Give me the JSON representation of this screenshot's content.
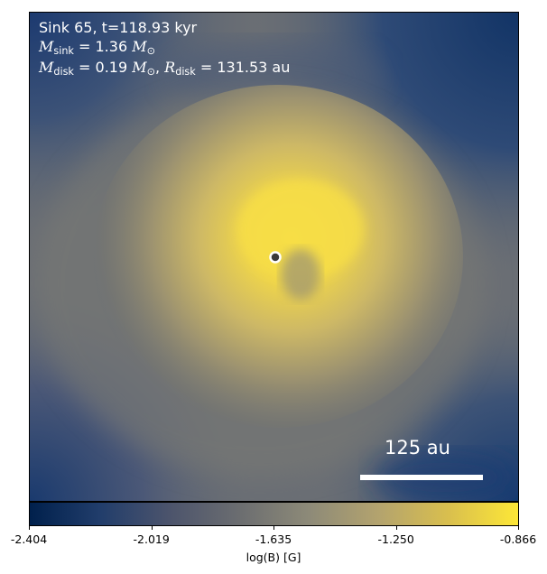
{
  "chart_data": {
    "type": "heatmap",
    "title_line1": "Sink 65, t=118.93 kyr",
    "title_line2": {
      "symbol": "M",
      "subscript": "sink",
      "value": "= 1.36",
      "unit": "M",
      "unit_subscript": "⊙"
    },
    "title_line3": {
      "mass_symbol": "M",
      "mass_subscript": "disk",
      "mass_value": "= 0.19",
      "mass_unit": "M",
      "mass_unit_subscript": "⊙",
      "radius_symbol": "R",
      "radius_subscript": "disk",
      "radius_value": "= 131.53",
      "radius_unit": "au"
    },
    "scale_bar_label": "125 au",
    "colorbar": {
      "label": "log(B) [G]",
      "ticks": [
        "-2.404",
        "-2.019",
        "-1.635",
        "-1.250",
        "-0.866"
      ],
      "range": [
        -2.404,
        -0.866
      ],
      "colormap": "cividis",
      "colors": [
        "#00204c",
        "#213d6b",
        "#4c546c",
        "#6b6d70",
        "#8d8a78",
        "#b3a36e",
        "#d9bf4e",
        "#fde737"
      ]
    },
    "colors": {
      "disk_core": "#f7de46",
      "background_gray": "#6a6e74",
      "dark_blue": "#1a3a6e",
      "sink_marker_fill": "#3a3a3a",
      "sink_marker_ring": "#ffffff"
    }
  }
}
